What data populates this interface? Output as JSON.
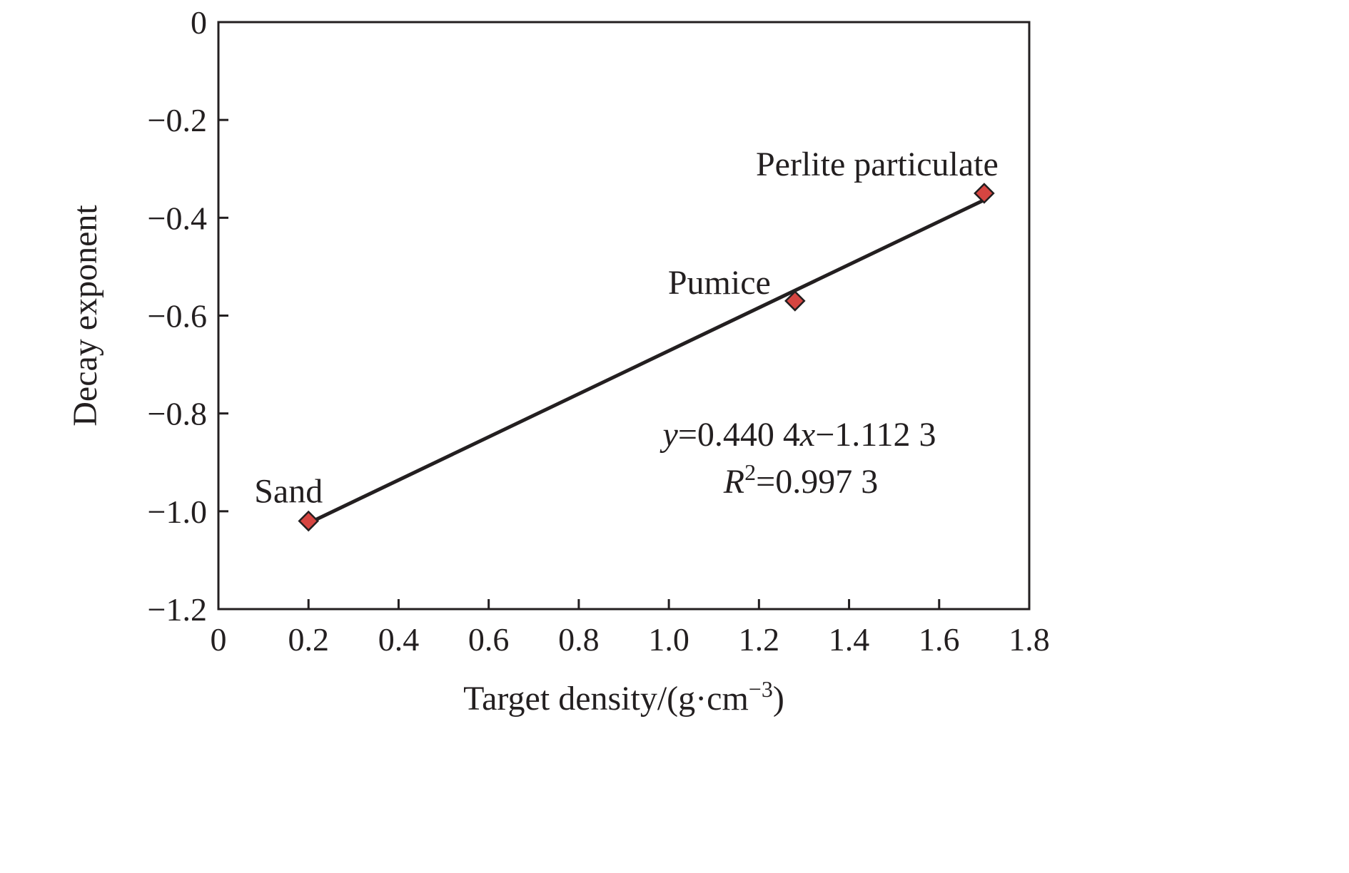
{
  "chart_data": {
    "type": "scatter",
    "title": "",
    "xlabel": "Target density/(g·cm−3)",
    "xlabel_parts": {
      "main": "Target density/(g·cm",
      "sup": "−3",
      "close": ")"
    },
    "ylabel": "Decay exponent",
    "xlim": [
      0,
      1.8
    ],
    "ylim": [
      -1.2,
      0
    ],
    "xticks": [
      0,
      0.2,
      0.4,
      0.6,
      0.8,
      1.0,
      1.2,
      1.4,
      1.6,
      1.8
    ],
    "xtick_labels": [
      "0",
      "0.2",
      "0.4",
      "0.6",
      "0.8",
      "1.0",
      "1.2",
      "1.4",
      "1.6",
      "1.8"
    ],
    "yticks": [
      0,
      -0.2,
      -0.4,
      -0.6,
      -0.8,
      -1.0,
      -1.2
    ],
    "ytick_labels": [
      "0",
      "−0.2",
      "−0.4",
      "−0.6",
      "−0.8",
      "−1.0",
      "−1.2"
    ],
    "grid": false,
    "points": [
      {
        "label": "Sand",
        "x": 0.2,
        "y": -1.02
      },
      {
        "label": "Pumice",
        "x": 1.28,
        "y": -0.57
      },
      {
        "label": "Perlite particulate",
        "x": 1.7,
        "y": -0.35
      }
    ],
    "fit_line": {
      "slope": 0.4404,
      "intercept": -1.1123,
      "x_range": [
        0.2,
        1.7
      ]
    },
    "equation": {
      "line1": {
        "y": "y",
        "a": "=0.440 4",
        "x": "x",
        "b": "−1.112 3"
      },
      "line2": {
        "r": "R",
        "sup": "2",
        "value": "=0.997 3"
      }
    },
    "colors": {
      "marker_fill": "#d64541",
      "marker_stroke": "#231f20",
      "line": "#231f20",
      "axis": "#231f20"
    }
  }
}
